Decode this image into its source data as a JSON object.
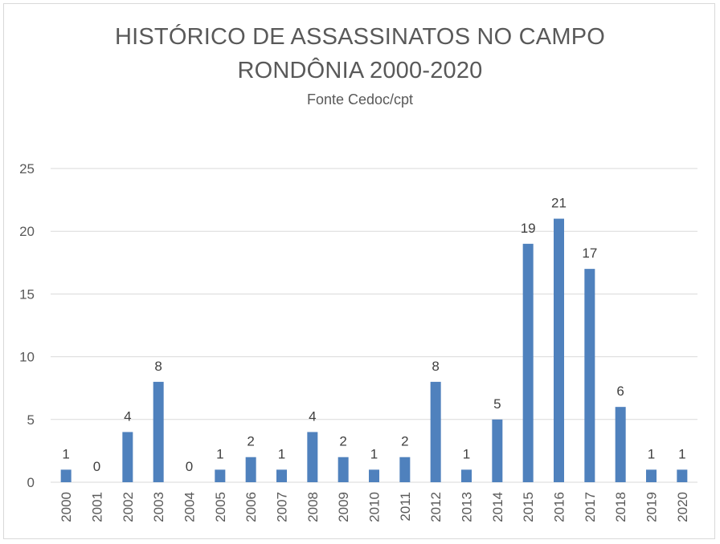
{
  "chart_data": {
    "type": "bar",
    "title_line1": "HISTÓRICO DE ASSASSINATOS NO CAMPO",
    "title_line2": "RONDÔNIA 2000-2020",
    "subtitle": "Fonte Cedoc/cpt",
    "categories": [
      "2000",
      "2001",
      "2002",
      "2003",
      "2004",
      "2005",
      "2006",
      "2007",
      "2008",
      "2009",
      "2010",
      "2011",
      "2012",
      "2013",
      "2014",
      "2015",
      "2016",
      "2017",
      "2018",
      "2019",
      "2020"
    ],
    "values": [
      1,
      0,
      4,
      8,
      0,
      1,
      2,
      1,
      4,
      2,
      1,
      2,
      8,
      1,
      5,
      19,
      21,
      17,
      6,
      1,
      1
    ],
    "ylim": [
      0,
      25
    ],
    "yticks": [
      0,
      5,
      10,
      15,
      20,
      25
    ],
    "grid": true,
    "data_labels": true,
    "bar_color": "#4f81bd",
    "grid_color": "#d9d9d9"
  }
}
